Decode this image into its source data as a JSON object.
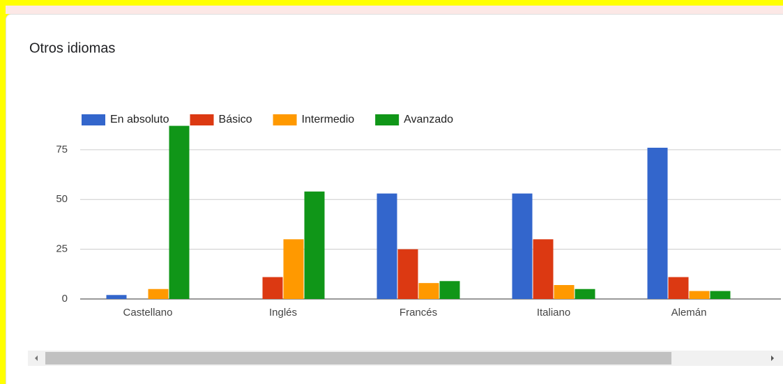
{
  "chart_data": {
    "type": "bar",
    "title": "Otros idiomas",
    "categories": [
      "Castellano",
      "Inglés",
      "Francés",
      "Italiano",
      "Alemán"
    ],
    "series": [
      {
        "name": "En absoluto",
        "color": "#3366cc",
        "values": [
          2,
          0,
          53,
          53,
          76
        ]
      },
      {
        "name": "Básico",
        "color": "#dc3912",
        "values": [
          0,
          11,
          25,
          30,
          11
        ]
      },
      {
        "name": "Intermedio",
        "color": "#ff9900",
        "values": [
          5,
          30,
          8,
          7,
          4
        ]
      },
      {
        "name": "Avanzado",
        "color": "#109618",
        "values": [
          87,
          54,
          9,
          5,
          4
        ]
      }
    ],
    "ylim": [
      0,
      90
    ],
    "yticks": [
      0,
      25,
      50,
      75
    ],
    "grid": true,
    "legend": "top"
  }
}
